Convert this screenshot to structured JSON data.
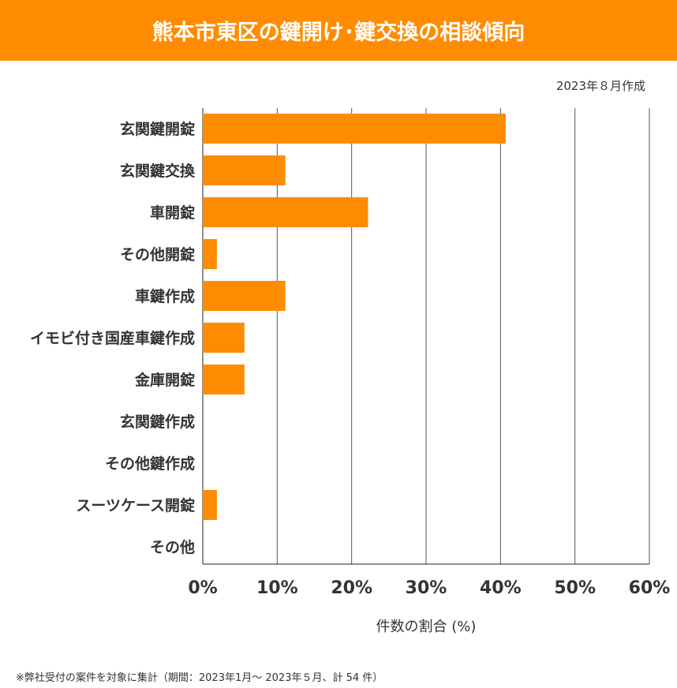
{
  "chart_data": {
    "type": "bar",
    "orientation": "horizontal",
    "title": "熊本市東区の鍵開け･鍵交換の相談傾向",
    "subtitle": "2023年８月作成",
    "categories": [
      "玄関鍵開錠",
      "玄関鍵交換",
      "車開錠",
      "その他開錠",
      "車鍵作成",
      "イモビ付き国産車鍵作成",
      "金庫開錠",
      "玄関鍵作成",
      "その他鍵作成",
      "スーツケース開錠",
      "その他"
    ],
    "values": [
      40.7,
      11.1,
      22.2,
      1.9,
      11.1,
      5.6,
      5.6,
      0,
      0,
      1.9,
      0
    ],
    "xlabel": "件数の割合 (%)",
    "ylabel": "",
    "xlim": [
      0,
      60
    ],
    "xticks": [
      "0%",
      "10%",
      "20%",
      "30%",
      "40%",
      "50%",
      "60%"
    ],
    "grid": true,
    "bar_color": "#ff8c00",
    "footnote": "※弊社受付の案件を対象に集計（期間：2023年1月～ 2023年５月、計 54 件）"
  }
}
